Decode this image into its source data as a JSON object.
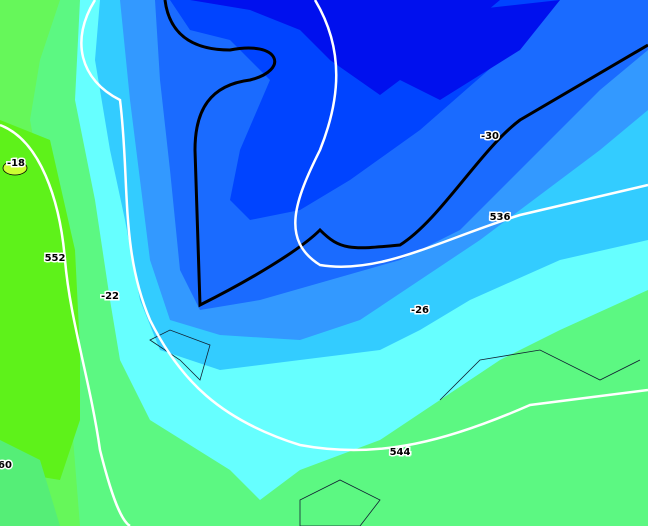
{
  "map": {
    "labels": [
      "-18",
      "552",
      "-22",
      "-30",
      "536",
      "-26",
      "544",
      "60"
    ]
  }
}
